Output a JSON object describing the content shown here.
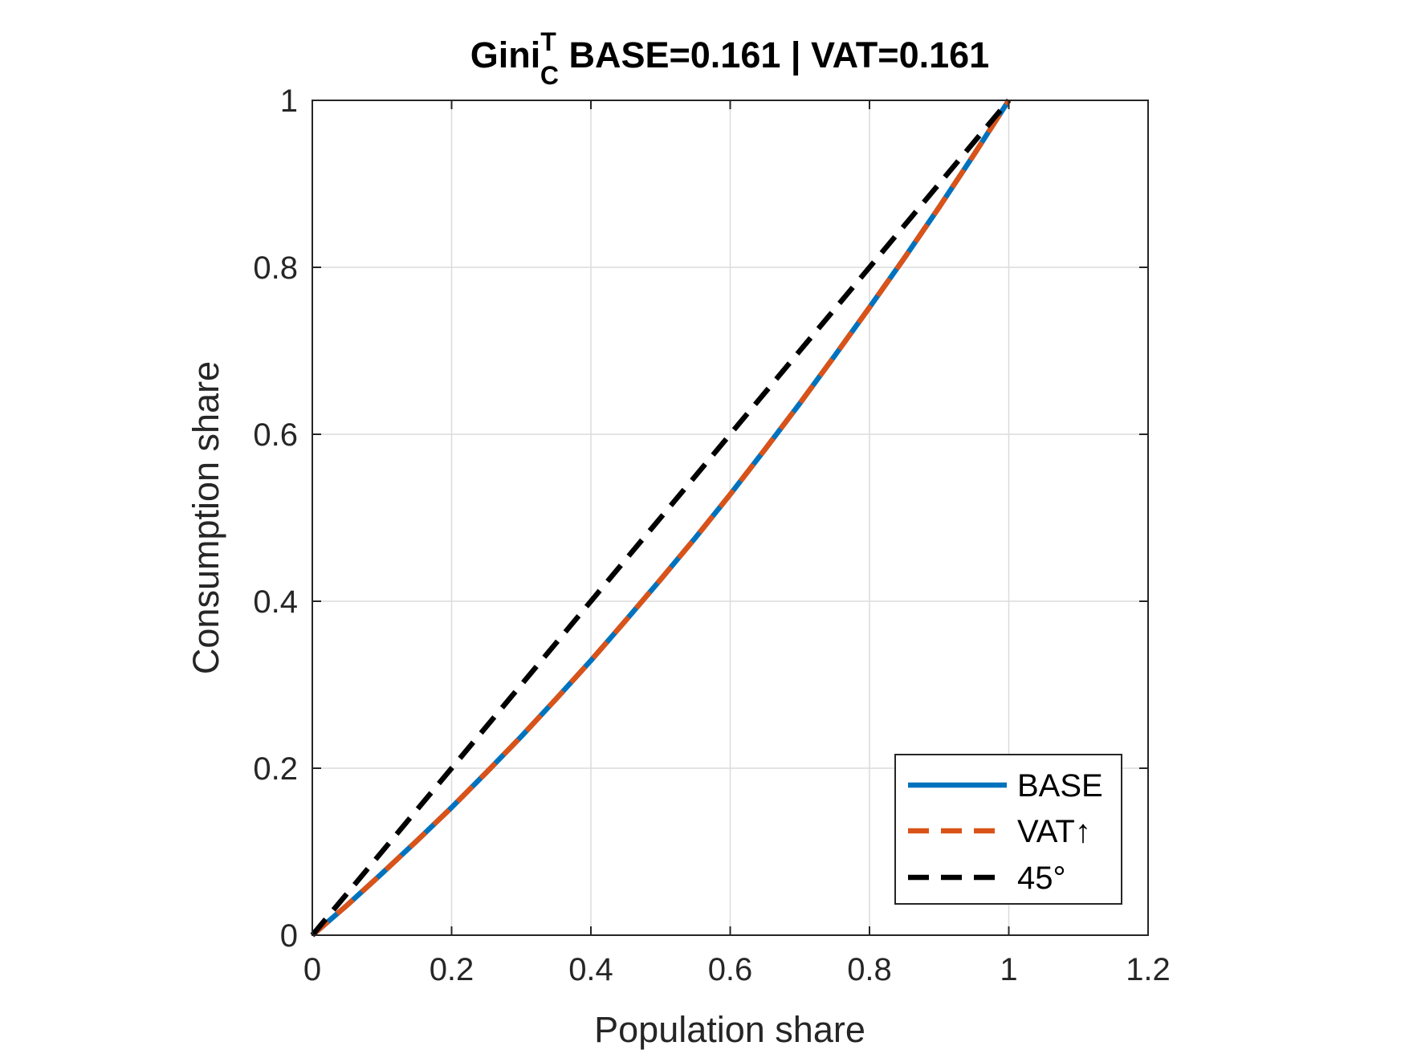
{
  "chart_data": {
    "type": "line",
    "title": {
      "prefix": "Gini",
      "superscript": "T",
      "subscript": "C",
      "suffix": " BASE=0.161 | VAT=0.161"
    },
    "xlabel": "Population share",
    "ylabel": "Consumption share",
    "xlim": [
      0,
      1.2
    ],
    "ylim": [
      0,
      1
    ],
    "xticks": [
      0,
      0.2,
      0.4,
      0.6,
      0.8,
      1,
      1.2
    ],
    "xtick_labels": [
      "0",
      "0.2",
      "0.4",
      "0.6",
      "0.8",
      "1",
      "1.2"
    ],
    "yticks": [
      0,
      0.2,
      0.4,
      0.6,
      0.8,
      1
    ],
    "ytick_labels": [
      "0",
      "0.2",
      "0.4",
      "0.6",
      "0.8",
      "1"
    ],
    "grid": true,
    "legend_position": "bottom-right",
    "series": [
      {
        "name": "BASE",
        "color": "#0072BD",
        "style": "solid",
        "x": [
          0,
          0.05,
          0.1,
          0.15,
          0.2,
          0.25,
          0.3,
          0.35,
          0.4,
          0.45,
          0.5,
          0.55,
          0.6,
          0.65,
          0.7,
          0.75,
          0.8,
          0.85,
          0.9,
          0.95,
          1
        ],
        "y": [
          0,
          0.036,
          0.074,
          0.113,
          0.153,
          0.195,
          0.238,
          0.283,
          0.329,
          0.377,
          0.426,
          0.476,
          0.528,
          0.582,
          0.637,
          0.694,
          0.752,
          0.811,
          0.872,
          0.935,
          1
        ]
      },
      {
        "name": "VAT↑",
        "color": "#D95319",
        "style": "dashed",
        "x": [
          0,
          0.05,
          0.1,
          0.15,
          0.2,
          0.25,
          0.3,
          0.35,
          0.4,
          0.45,
          0.5,
          0.55,
          0.6,
          0.65,
          0.7,
          0.75,
          0.8,
          0.85,
          0.9,
          0.95,
          1
        ],
        "y": [
          0,
          0.036,
          0.074,
          0.113,
          0.153,
          0.195,
          0.238,
          0.283,
          0.329,
          0.377,
          0.426,
          0.476,
          0.528,
          0.582,
          0.637,
          0.694,
          0.752,
          0.811,
          0.872,
          0.935,
          1
        ]
      },
      {
        "name": "45°",
        "color": "#000000",
        "style": "dashed",
        "x": [
          0,
          1
        ],
        "y": [
          0,
          1
        ]
      }
    ]
  }
}
